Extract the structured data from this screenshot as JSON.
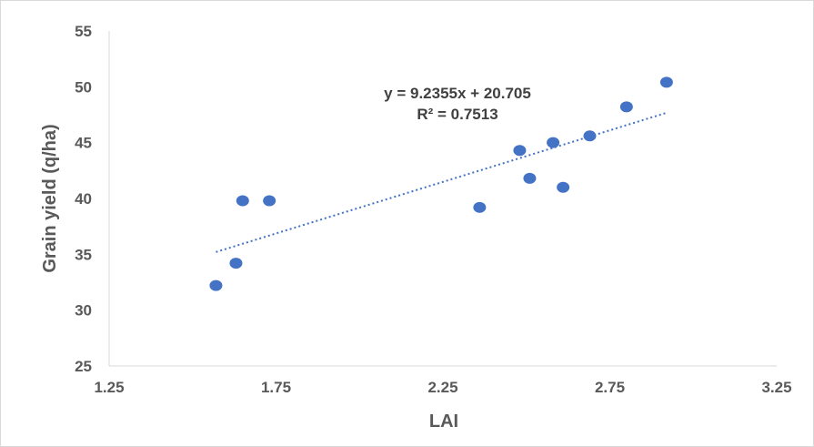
{
  "chart_data": {
    "type": "scatter",
    "title": "",
    "xlabel": "LAI",
    "ylabel": "Grain yield (q/ha)",
    "xlim": [
      1.25,
      3.25
    ],
    "ylim": [
      25,
      55
    ],
    "x_ticks": [
      "1.25",
      "1.75",
      "2.25",
      "2.75",
      "3.25"
    ],
    "y_ticks": [
      "25",
      "30",
      "35",
      "40",
      "45",
      "50",
      "55"
    ],
    "grid": false,
    "legend": "none",
    "marker_color": "#4472C4",
    "trendline_color": "#4472C4",
    "series": [
      {
        "points": [
          {
            "x": 1.57,
            "y": 32.2
          },
          {
            "x": 1.63,
            "y": 34.2
          },
          {
            "x": 1.65,
            "y": 39.8
          },
          {
            "x": 1.73,
            "y": 39.8
          },
          {
            "x": 2.36,
            "y": 39.2
          },
          {
            "x": 2.48,
            "y": 44.3
          },
          {
            "x": 2.51,
            "y": 41.8
          },
          {
            "x": 2.58,
            "y": 45.0
          },
          {
            "x": 2.61,
            "y": 41.0
          },
          {
            "x": 2.69,
            "y": 45.6
          },
          {
            "x": 2.8,
            "y": 48.2
          },
          {
            "x": 2.92,
            "y": 50.4
          }
        ]
      }
    ],
    "trendline": {
      "type": "linear",
      "slope": 9.2355,
      "intercept": 20.705,
      "x_range": [
        1.57,
        2.92
      ],
      "equation": "y = 9.2355x + 20.705",
      "r_squared": "R² = 0.7513"
    }
  }
}
